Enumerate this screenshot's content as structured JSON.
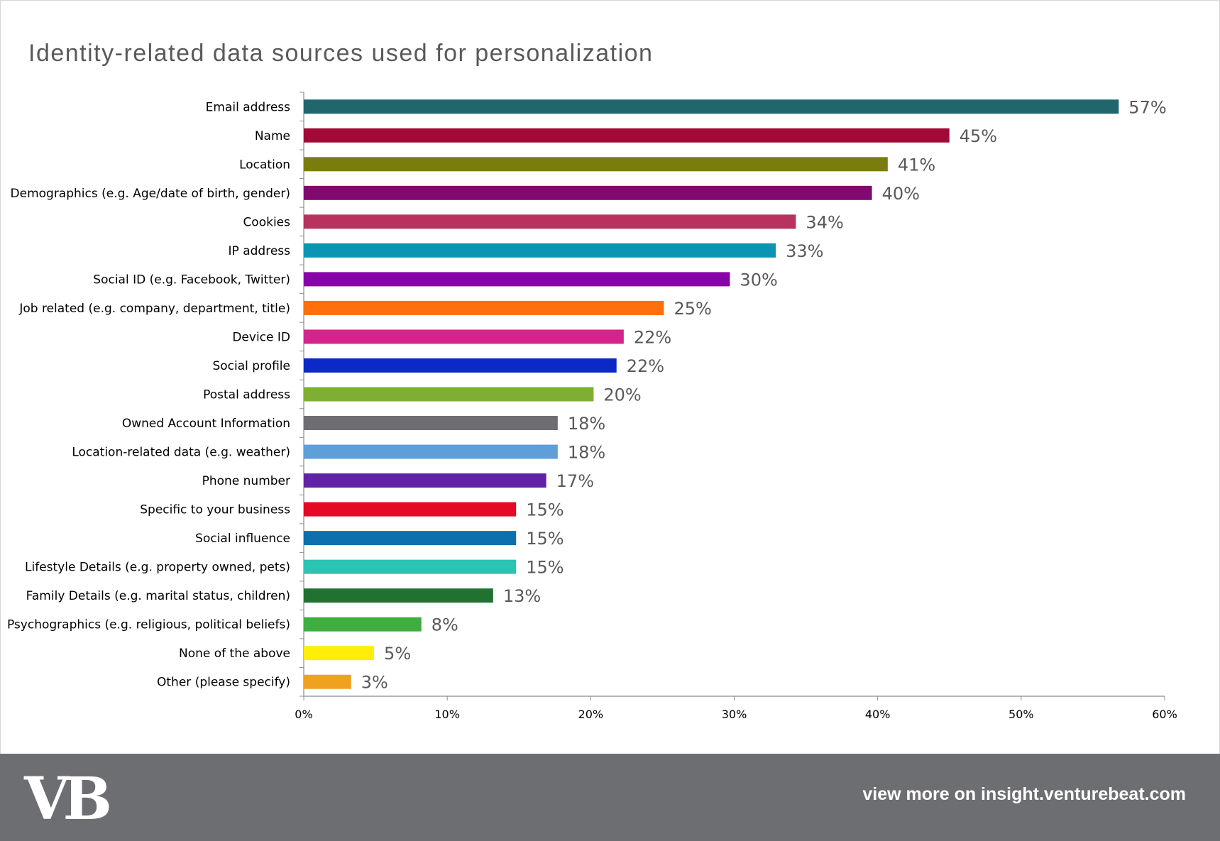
{
  "chart_data": {
    "type": "bar",
    "orientation": "horizontal",
    "title": "Identity-related data sources used for personalization",
    "categories": [
      "Email address",
      "Name",
      "Location",
      "Demographics (e.g. Age/date of birth, gender)",
      "Cookies",
      "IP address",
      "Social ID (e.g. Facebook, Twitter)",
      "Job related (e.g. company, department, title)",
      "Device ID",
      "Social profile",
      "Postal address",
      "Owned Account Information",
      "Location-related data (e.g. weather)",
      "Phone number",
      "Specific to your business",
      "Social influence",
      "Lifestyle Details (e.g. property owned, pets)",
      "Family Details (e.g. marital status, children)",
      "Psychographics (e.g. religious, political beliefs)",
      "None of the above",
      "Other (please specify)"
    ],
    "values": [
      56.8,
      45.0,
      40.7,
      39.6,
      34.3,
      32.9,
      29.7,
      25.1,
      22.3,
      21.8,
      20.2,
      17.7,
      17.7,
      16.9,
      14.8,
      14.8,
      14.8,
      13.2,
      8.2,
      4.9,
      3.3
    ],
    "value_labels": [
      "57%",
      "45%",
      "41%",
      "40%",
      "34%",
      "33%",
      "30%",
      "25%",
      "22%",
      "22%",
      "20%",
      "18%",
      "18%",
      "17%",
      "15%",
      "15%",
      "15%",
      "13%",
      "8%",
      "5%",
      "3%"
    ],
    "colors": [
      "#21666d",
      "#a00a34",
      "#7a7d0e",
      "#800a6f",
      "#b8315f",
      "#0b95b2",
      "#8705a7",
      "#ff6f0b",
      "#d6228c",
      "#0a29c7",
      "#7eaf34",
      "#6e6e72",
      "#5e9fd9",
      "#6321a6",
      "#e50924",
      "#0d6fad",
      "#29c4b2",
      "#217231",
      "#3fad3f",
      "#ffee0a",
      "#f0a11f"
    ],
    "xlim": [
      0,
      60
    ],
    "xticks": [
      "0%",
      "10%",
      "20%",
      "30%",
      "40%",
      "50%",
      "60%"
    ],
    "xlabel": "",
    "ylabel": "",
    "grid": false,
    "legend": "none"
  },
  "footer": {
    "logo_text": "VB",
    "cta_text": "view more on insight.venturebeat.com",
    "background": "#6d6e71"
  }
}
